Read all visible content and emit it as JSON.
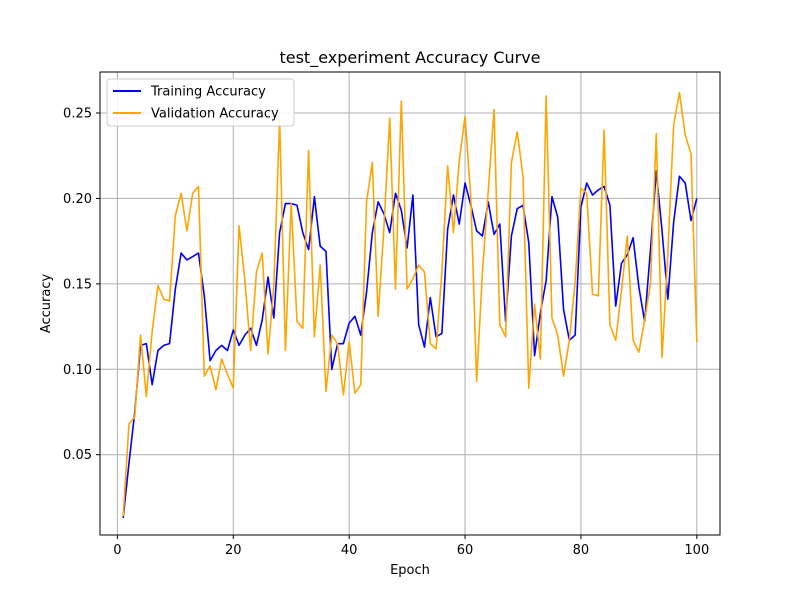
{
  "chart_data": {
    "type": "line",
    "title": "test_experiment Accuracy Curve",
    "xlabel": "Epoch",
    "ylabel": "Accuracy",
    "xlim": [
      -3,
      104
    ],
    "ylim": [
      0.003,
      0.274
    ],
    "xticks": [
      0,
      20,
      40,
      60,
      80,
      100
    ],
    "yticks": [
      0.05,
      0.1,
      0.15,
      0.2,
      0.25
    ],
    "ytick_labels": [
      "0.05",
      "0.10",
      "0.15",
      "0.20",
      "0.25"
    ],
    "grid": true,
    "legend_position": "upper-left",
    "x": [
      1,
      2,
      3,
      4,
      5,
      6,
      7,
      8,
      9,
      10,
      11,
      12,
      13,
      14,
      15,
      16,
      17,
      18,
      19,
      20,
      21,
      22,
      23,
      24,
      25,
      26,
      27,
      28,
      29,
      30,
      31,
      32,
      33,
      34,
      35,
      36,
      37,
      38,
      39,
      40,
      41,
      42,
      43,
      44,
      45,
      46,
      47,
      48,
      49,
      50,
      51,
      52,
      53,
      54,
      55,
      56,
      57,
      58,
      59,
      60,
      61,
      62,
      63,
      64,
      65,
      66,
      67,
      68,
      69,
      70,
      71,
      72,
      73,
      74,
      75,
      76,
      77,
      78,
      79,
      80,
      81,
      82,
      83,
      84,
      85,
      86,
      87,
      88,
      89,
      90,
      91,
      92,
      93,
      94,
      95,
      96,
      97,
      98,
      99,
      100
    ],
    "series": [
      {
        "name": "Training Accuracy",
        "color": "#0000ff",
        "values": [
          0.013,
          0.045,
          0.075,
          0.114,
          0.115,
          0.091,
          0.111,
          0.114,
          0.115,
          0.147,
          0.168,
          0.164,
          0.166,
          0.168,
          0.143,
          0.105,
          0.111,
          0.114,
          0.111,
          0.123,
          0.114,
          0.12,
          0.124,
          0.114,
          0.129,
          0.154,
          0.13,
          0.18,
          0.197,
          0.197,
          0.196,
          0.18,
          0.17,
          0.201,
          0.172,
          0.169,
          0.1,
          0.115,
          0.115,
          0.127,
          0.131,
          0.12,
          0.145,
          0.18,
          0.198,
          0.191,
          0.18,
          0.203,
          0.193,
          0.171,
          0.202,
          0.126,
          0.113,
          0.142,
          0.119,
          0.121,
          0.182,
          0.202,
          0.185,
          0.209,
          0.196,
          0.181,
          0.178,
          0.198,
          0.179,
          0.185,
          0.128,
          0.178,
          0.194,
          0.196,
          0.174,
          0.108,
          0.133,
          0.152,
          0.201,
          0.189,
          0.135,
          0.117,
          0.12,
          0.195,
          0.209,
          0.202,
          0.205,
          0.207,
          0.196,
          0.137,
          0.162,
          0.167,
          0.177,
          0.148,
          0.128,
          0.17,
          0.216,
          0.181,
          0.141,
          0.186,
          0.213,
          0.209,
          0.187,
          0.2
        ]
      },
      {
        "name": "Validation Accuracy",
        "color": "#ffa500",
        "values": [
          0.014,
          0.068,
          0.072,
          0.12,
          0.084,
          0.122,
          0.149,
          0.141,
          0.14,
          0.19,
          0.203,
          0.181,
          0.203,
          0.207,
          0.096,
          0.102,
          0.088,
          0.106,
          0.097,
          0.089,
          0.184,
          0.152,
          0.111,
          0.157,
          0.168,
          0.109,
          0.149,
          0.246,
          0.111,
          0.197,
          0.128,
          0.124,
          0.228,
          0.119,
          0.161,
          0.087,
          0.12,
          0.115,
          0.085,
          0.116,
          0.086,
          0.091,
          0.198,
          0.221,
          0.131,
          0.183,
          0.247,
          0.147,
          0.257,
          0.147,
          0.153,
          0.161,
          0.157,
          0.115,
          0.112,
          0.157,
          0.219,
          0.18,
          0.222,
          0.248,
          0.2,
          0.093,
          0.157,
          0.204,
          0.252,
          0.126,
          0.119,
          0.221,
          0.239,
          0.213,
          0.089,
          0.138,
          0.106,
          0.26,
          0.13,
          0.12,
          0.096,
          0.117,
          0.151,
          0.206,
          0.203,
          0.144,
          0.143,
          0.24,
          0.126,
          0.117,
          0.146,
          0.178,
          0.117,
          0.11,
          0.129,
          0.15,
          0.238,
          0.107,
          0.168,
          0.243,
          0.262,
          0.237,
          0.226,
          0.116
        ]
      }
    ]
  }
}
